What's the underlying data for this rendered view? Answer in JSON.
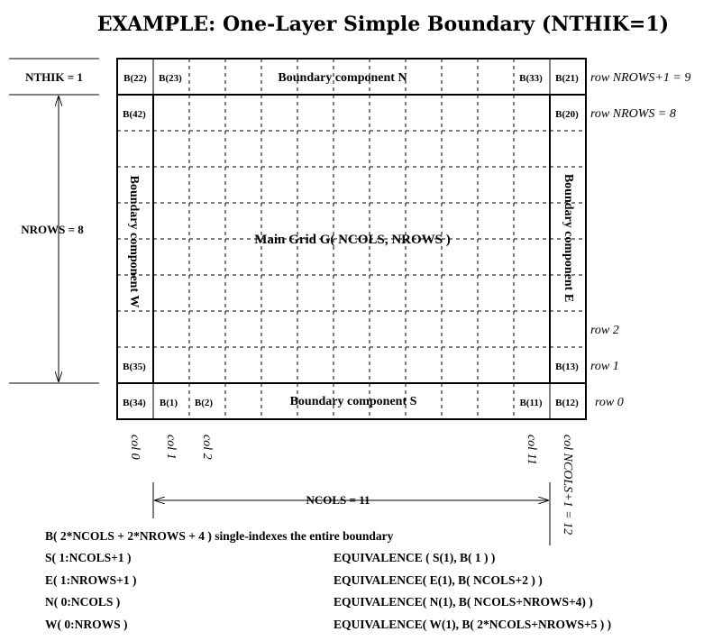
{
  "title": "EXAMPLE:  One-Layer Simple Boundary (NTHIK=1)",
  "left_labels": {
    "nthik": "NTHIK = 1",
    "nrows": "NROWS = 8"
  },
  "grid": {
    "ncols": 11,
    "nrows": 8,
    "nthik": 1
  },
  "cells": {
    "b22": "B(22)",
    "b23": "B(23)",
    "b33": "B(33)",
    "b21": "B(21)",
    "b42": "B(42)",
    "b20": "B(20)",
    "b35": "B(35)",
    "b13": "B(13)",
    "b34": "B(34)",
    "b1": "B(1)",
    "b2": "B(2)",
    "b11": "B(11)",
    "b12": "B(12)"
  },
  "components": {
    "north": "Boundary component  N",
    "south": "Boundary component  S",
    "west": "Boundary component  W",
    "east": "Boundary component  E",
    "main": "Main Grid  G( NCOLS, NROWS )"
  },
  "row_labels": {
    "row9": "row  NROWS+1 = 9",
    "row8": "row  NROWS = 8",
    "row2": "row  2",
    "row1": "row  1",
    "row0": "row  0"
  },
  "col_labels": {
    "col0": "col  0",
    "col1": "col  1",
    "col2": "col  2",
    "col11": "col  11",
    "col12": "col  NCOLS+1 = 12"
  },
  "ncols_label": "NCOLS = 11",
  "code": {
    "summary": "B( 2*NCOLS + 2*NROWS + 4 ) single-indexes the entire boundary",
    "left": [
      "S( 1:NCOLS+1 )",
      "E( 1:NROWS+1 )",
      "N( 0:NCOLS )",
      "W( 0:NROWS )"
    ],
    "right": [
      "EQUIVALENCE ( S(1), B( 1 ) )",
      "EQUIVALENCE( E(1), B( NCOLS+2 ) )",
      "EQUIVALENCE( N(1), B( NCOLS+NROWS+4) )",
      "EQUIVALENCE( W(1), B( 2*NCOLS+NROWS+5 ) )"
    ]
  }
}
